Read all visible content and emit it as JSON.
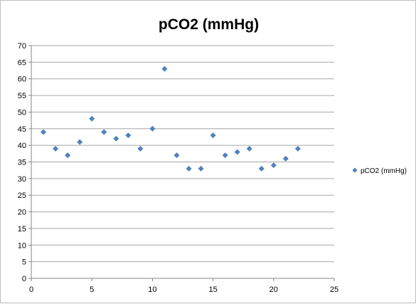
{
  "chart_data": {
    "type": "scatter",
    "title": "pCO2 (mmHg)",
    "xlabel": "",
    "ylabel": "",
    "xlim": [
      0,
      25
    ],
    "ylim": [
      0,
      70
    ],
    "xticks": [
      0,
      5,
      10,
      15,
      20,
      25
    ],
    "yticks": [
      0,
      5,
      10,
      15,
      20,
      25,
      30,
      35,
      40,
      45,
      50,
      55,
      60,
      65,
      70
    ],
    "grid": "horizontal major gridlines",
    "legend_position": "right",
    "series": [
      {
        "name": "pCO2 (mmHg)",
        "color": "#4f81bd",
        "marker": "diamond",
        "x": [
          1,
          2,
          3,
          4,
          5,
          6,
          7,
          8,
          9,
          10,
          11,
          12,
          13,
          14,
          15,
          16,
          17,
          18,
          19,
          20,
          21,
          22
        ],
        "y": [
          44,
          39,
          37,
          41,
          48,
          44,
          42,
          43,
          39,
          45,
          63,
          37,
          33,
          33,
          43,
          37,
          38,
          39,
          33,
          34,
          36,
          39
        ]
      }
    ]
  }
}
